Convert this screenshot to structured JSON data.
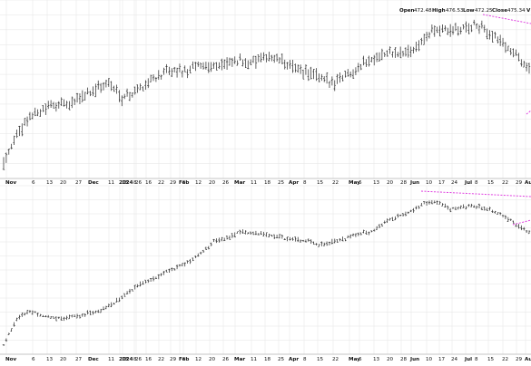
{
  "header": {
    "open_label": "Open",
    "open_value": "472.48",
    "high_label": "High",
    "high_value": "476.53",
    "low_label": "Low",
    "low_value": "472.25",
    "close_label": "Close",
    "close_value": "475.34",
    "trailing_label": "V"
  },
  "colors": {
    "background": "#ffffff",
    "grid": "#e3e3e3",
    "axis": "#999999",
    "bar": "#222222",
    "trendline": "#e040e0"
  },
  "chart_data": [
    {
      "type": "bar",
      "style": "ohlc",
      "title": "",
      "grid": true,
      "legend": "none",
      "x_ticks": [
        "Nov",
        "6",
        "13",
        "20",
        "27",
        "Dec",
        "11",
        "18",
        "26",
        "2024",
        "8",
        "16",
        "22",
        "29",
        "Feb",
        "5",
        "12",
        "20",
        "26",
        "Mar",
        "11",
        "18",
        "25",
        "Apr",
        "8",
        "15",
        "22",
        "May",
        "6",
        "13",
        "20",
        "28",
        "Jun",
        "10",
        "17",
        "24",
        "Jul",
        "8",
        "15",
        "22",
        "29",
        "Aug"
      ],
      "x": [
        "2023-11-01",
        "2023-11-08",
        "2023-11-15",
        "2023-11-22",
        "2023-11-29",
        "2023-12-06",
        "2023-12-13",
        "2023-12-20",
        "2023-12-27",
        "2024-01-03",
        "2024-01-10",
        "2024-01-17",
        "2024-01-24",
        "2024-01-31",
        "2024-02-07",
        "2024-02-14",
        "2024-02-21",
        "2024-02-28",
        "2024-03-06",
        "2024-03-13",
        "2024-03-20",
        "2024-03-27",
        "2024-04-03",
        "2024-04-10",
        "2024-04-17",
        "2024-04-24",
        "2024-05-01",
        "2024-05-08",
        "2024-05-15",
        "2024-05-22",
        "2024-05-29",
        "2024-06-05",
        "2024-06-12",
        "2024-06-19",
        "2024-06-26",
        "2024-07-03",
        "2024-07-10",
        "2024-07-17",
        "2024-07-24",
        "2024-07-31",
        "2024-08-05"
      ],
      "series": [
        {
          "values": [
            410,
            425,
            436,
            440,
            443,
            442,
            448,
            452,
            455,
            447,
            450,
            456,
            460,
            462,
            462,
            466,
            465,
            466,
            468,
            467,
            470,
            469,
            464,
            462,
            458,
            455,
            460,
            464,
            469,
            472,
            472,
            474,
            481,
            486,
            485,
            487,
            489,
            484,
            478,
            472,
            463
          ]
        }
      ]
    },
    {
      "type": "bar",
      "style": "ohlc",
      "title": "",
      "grid": true,
      "legend": "none",
      "x_ticks": [
        "Nov",
        "6",
        "13",
        "20",
        "27",
        "Dec",
        "11",
        "18",
        "26",
        "2024",
        "8",
        "16",
        "22",
        "29",
        "Feb",
        "5",
        "12",
        "20",
        "26",
        "Mar",
        "11",
        "18",
        "25",
        "Apr",
        "8",
        "15",
        "22",
        "May",
        "6",
        "13",
        "20",
        "28",
        "Jun",
        "10",
        "17",
        "24",
        "Jul",
        "8",
        "15",
        "22",
        "29",
        "Aug"
      ],
      "x": [
        "2023-11-01",
        "2023-11-08",
        "2023-11-15",
        "2023-11-22",
        "2023-11-29",
        "2023-12-06",
        "2023-12-13",
        "2023-12-20",
        "2023-12-27",
        "2024-01-03",
        "2024-01-10",
        "2024-01-17",
        "2024-01-24",
        "2024-01-31",
        "2024-02-07",
        "2024-02-14",
        "2024-02-21",
        "2024-02-28",
        "2024-03-06",
        "2024-03-13",
        "2024-03-20",
        "2024-03-27",
        "2024-04-03",
        "2024-04-10",
        "2024-04-17",
        "2024-04-24",
        "2024-05-01",
        "2024-05-08",
        "2024-05-15",
        "2024-05-22",
        "2024-05-29",
        "2024-06-05",
        "2024-06-12",
        "2024-06-19",
        "2024-06-26",
        "2024-07-03",
        "2024-07-10",
        "2024-07-17",
        "2024-07-24",
        "2024-07-31",
        "2024-08-05"
      ],
      "series": [
        {
          "values": [
            300,
            340,
            352,
            345,
            340,
            342,
            346,
            350,
            358,
            372,
            388,
            398,
            406,
            416,
            424,
            438,
            456,
            462,
            470,
            470,
            466,
            463,
            459,
            458,
            452,
            455,
            460,
            468,
            470,
            486,
            494,
            502,
            514,
            516,
            506,
            508,
            510,
            504,
            496,
            482,
            470
          ]
        }
      ]
    }
  ]
}
